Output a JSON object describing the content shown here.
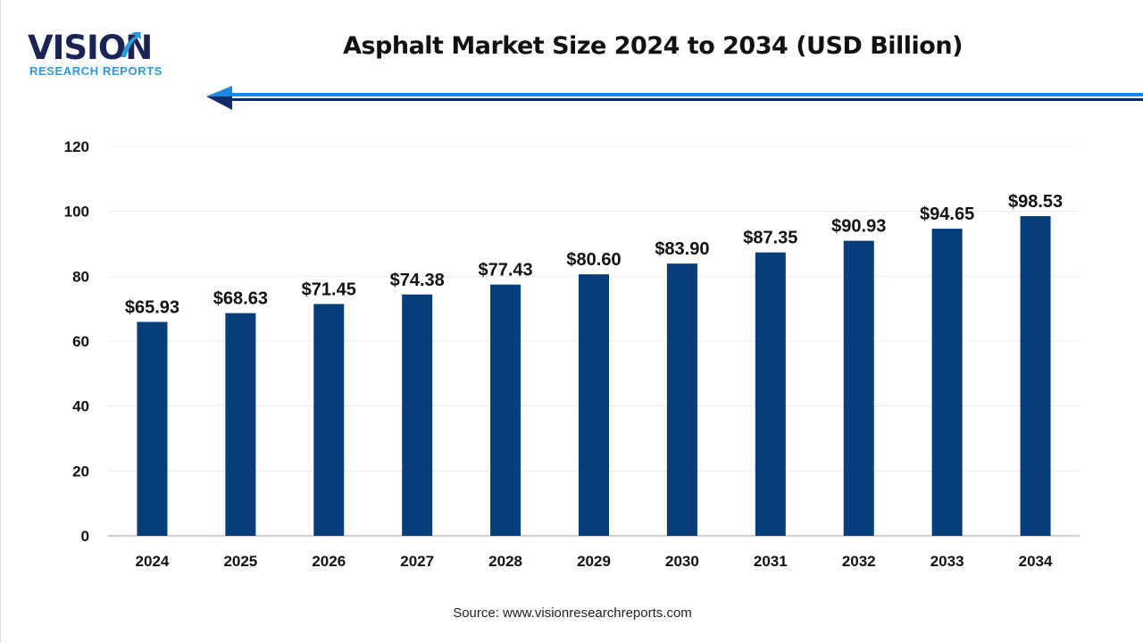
{
  "logo": {
    "word": "VISION",
    "tagline": "RESEARCH REPORTS"
  },
  "title": "Asphalt Market Size 2024 to 2034 (USD Billion)",
  "source": "Source: www.visionresearchreports.com",
  "colors": {
    "bar": "#063d7b",
    "logo_dark": "#1a2356",
    "logo_light": "#2a9be0",
    "arrow_light": "#1e88e5",
    "arrow_dark": "#0d2a6b"
  },
  "chart_data": {
    "type": "bar",
    "title": "Asphalt Market Size 2024 to 2034 (USD Billion)",
    "categories": [
      "2024",
      "2025",
      "2026",
      "2027",
      "2028",
      "2029",
      "2030",
      "2031",
      "2032",
      "2033",
      "2034"
    ],
    "values": [
      65.93,
      68.63,
      71.45,
      74.38,
      77.43,
      80.6,
      83.9,
      87.35,
      90.93,
      94.65,
      98.53
    ],
    "data_labels": [
      "$65.93",
      "$68.63",
      "$71.45",
      "$74.38",
      "$77.43",
      "$80.60",
      "$83.90",
      "$87.35",
      "$90.93",
      "$94.65",
      "$98.53"
    ],
    "ylim": [
      0,
      120
    ],
    "yticks": [
      "0",
      "20",
      "40",
      "60",
      "80",
      "100",
      "120"
    ],
    "grid": true,
    "xlabel": "",
    "ylabel": ""
  }
}
